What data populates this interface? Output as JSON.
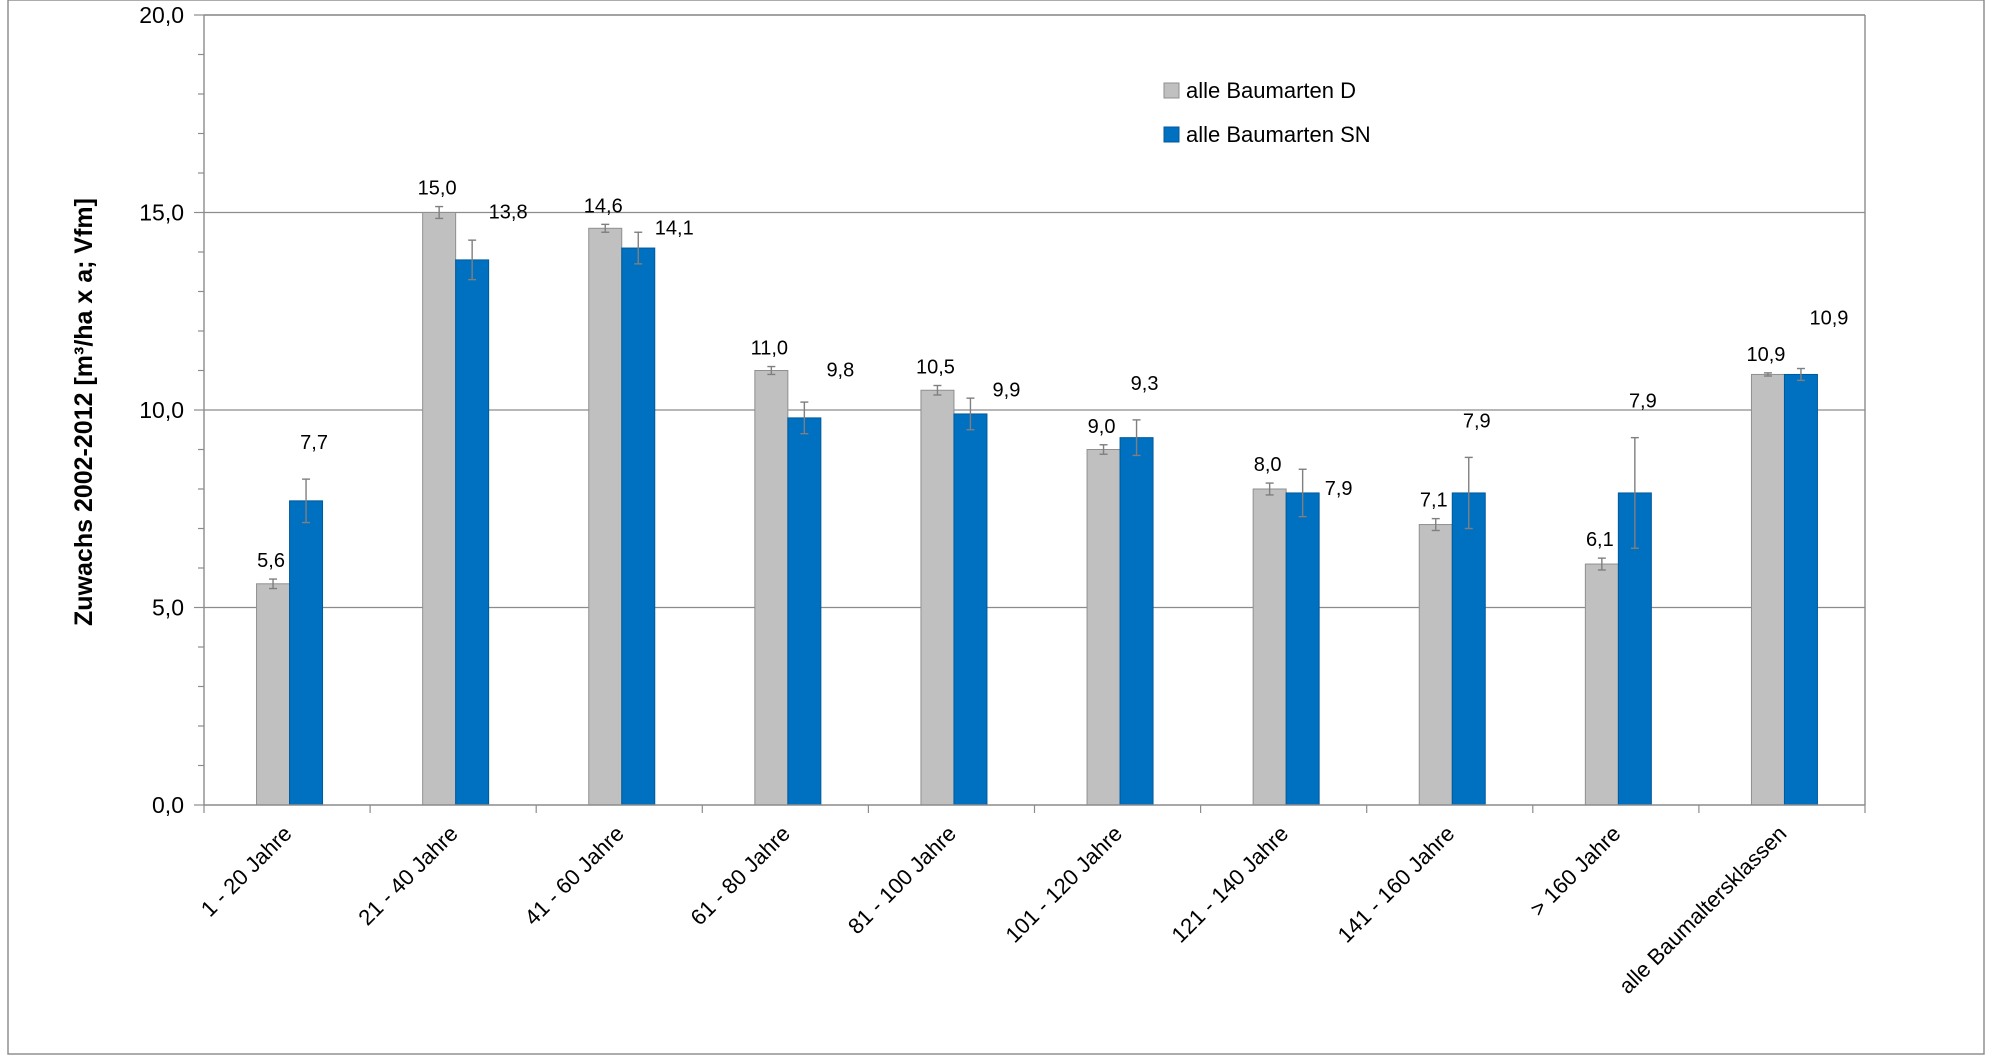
{
  "chart_data": {
    "type": "bar",
    "ylabel": "Zuwachs 2002-2012 [m³/ha x a; Vfm]",
    "xlabel": "",
    "ylim": [
      0,
      20
    ],
    "ytick_labels": [
      "0,0",
      "5,0",
      "10,0",
      "15,0",
      "20,0"
    ],
    "ytick_values": [
      0,
      5,
      10,
      15,
      20
    ],
    "minor_tick_step": 1,
    "gridlines": "major-horizontal",
    "legend_position": "top-right",
    "categories": [
      "1 - 20 Jahre",
      "21 - 40 Jahre",
      "41 - 60 Jahre",
      "61 - 80 Jahre",
      "81 - 100 Jahre",
      "101 - 120 Jahre",
      "121 - 140 Jahre",
      "141 - 160 Jahre",
      "> 160 Jahre",
      "alle Baumaltersklassen"
    ],
    "series": [
      {
        "name": "alle Baumarten D",
        "color": "#c0c0c0",
        "values": [
          5.6,
          15.0,
          14.6,
          11.0,
          10.5,
          9.0,
          8.0,
          7.1,
          6.1,
          10.9
        ],
        "labels": [
          "5,6",
          "15,0",
          "14,6",
          "11,0",
          "10,5",
          "9,0",
          "8,0",
          "7,1",
          "6,1",
          "10,9"
        ],
        "errors": [
          0.12,
          0.15,
          0.1,
          0.1,
          0.12,
          0.12,
          0.15,
          0.15,
          0.15,
          0.04
        ]
      },
      {
        "name": "alle Baumarten SN",
        "color": "#0070c0",
        "values": [
          7.7,
          13.8,
          14.1,
          9.8,
          9.9,
          9.3,
          7.9,
          7.9,
          7.9,
          10.9
        ],
        "labels": [
          "7,7",
          "13,8",
          "14,1",
          "9,8",
          "9,9",
          "9,3",
          "7,9",
          "7,9",
          "7,9",
          "10,9"
        ],
        "errors": [
          0.55,
          0.5,
          0.4,
          0.4,
          0.4,
          0.45,
          0.6,
          0.9,
          1.4,
          0.15
        ]
      }
    ]
  }
}
